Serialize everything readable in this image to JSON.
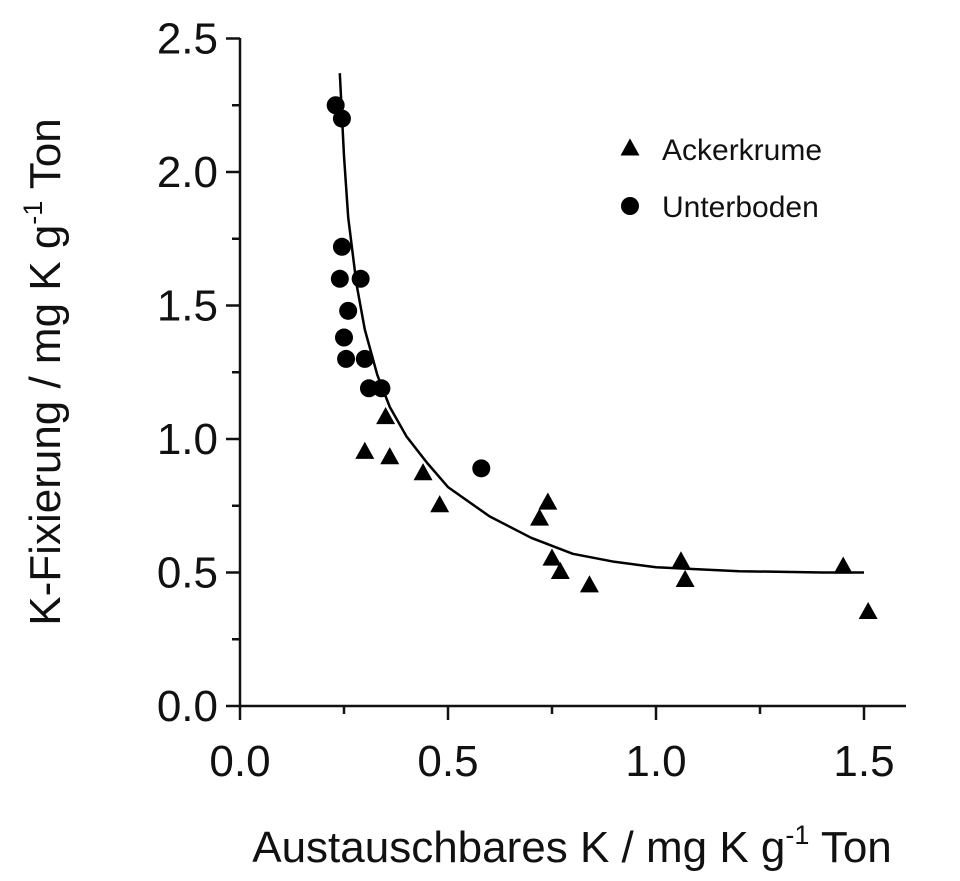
{
  "chart_data": {
    "type": "scatter",
    "title": "",
    "xlabel": {
      "main": "Austauschbares K / mg K g",
      "sup": "-1",
      "tail": " Ton"
    },
    "ylabel": {
      "main": "K-Fixierung / mg K g",
      "sup": "-1",
      "tail": " Ton"
    },
    "xlim": [
      0,
      1.6
    ],
    "ylim": [
      0,
      2.5
    ],
    "x_ticks": [
      "0.0",
      "0.5",
      "1.0",
      "1.5"
    ],
    "y_ticks": [
      "0.0",
      "0.5",
      "1.0",
      "1.5",
      "2.0",
      "2.5"
    ],
    "grid": false,
    "legend_position": "top-right",
    "series": [
      {
        "name": "Ackerkrume",
        "marker": "triangle",
        "color": "#000000",
        "points": [
          [
            0.3,
            0.95
          ],
          [
            0.35,
            1.08
          ],
          [
            0.36,
            0.93
          ],
          [
            0.44,
            0.87
          ],
          [
            0.48,
            0.75
          ],
          [
            0.72,
            0.7
          ],
          [
            0.74,
            0.76
          ],
          [
            0.75,
            0.55
          ],
          [
            0.77,
            0.5
          ],
          [
            0.84,
            0.45
          ],
          [
            1.06,
            0.54
          ],
          [
            1.07,
            0.47
          ],
          [
            1.45,
            0.52
          ],
          [
            1.51,
            0.35
          ]
        ]
      },
      {
        "name": "Unterboden",
        "marker": "circle",
        "color": "#000000",
        "points": [
          [
            0.23,
            2.25
          ],
          [
            0.245,
            2.2
          ],
          [
            0.245,
            1.72
          ],
          [
            0.24,
            1.6
          ],
          [
            0.26,
            1.48
          ],
          [
            0.25,
            1.38
          ],
          [
            0.255,
            1.3
          ],
          [
            0.29,
            1.6
          ],
          [
            0.3,
            1.3
          ],
          [
            0.31,
            1.19
          ],
          [
            0.34,
            1.19
          ],
          [
            0.58,
            0.89
          ]
        ]
      }
    ],
    "fit_line": {
      "color": "#000000",
      "points": [
        [
          0.24,
          2.37
        ],
        [
          0.25,
          2.06
        ],
        [
          0.26,
          1.83
        ],
        [
          0.28,
          1.58
        ],
        [
          0.3,
          1.41
        ],
        [
          0.33,
          1.24
        ],
        [
          0.36,
          1.12
        ],
        [
          0.4,
          1.01
        ],
        [
          0.45,
          0.91
        ],
        [
          0.5,
          0.82
        ],
        [
          0.6,
          0.71
        ],
        [
          0.7,
          0.63
        ],
        [
          0.8,
          0.57
        ],
        [
          0.9,
          0.54
        ],
        [
          1.0,
          0.52
        ],
        [
          1.2,
          0.505
        ],
        [
          1.4,
          0.5
        ],
        [
          1.5,
          0.5
        ]
      ]
    }
  }
}
